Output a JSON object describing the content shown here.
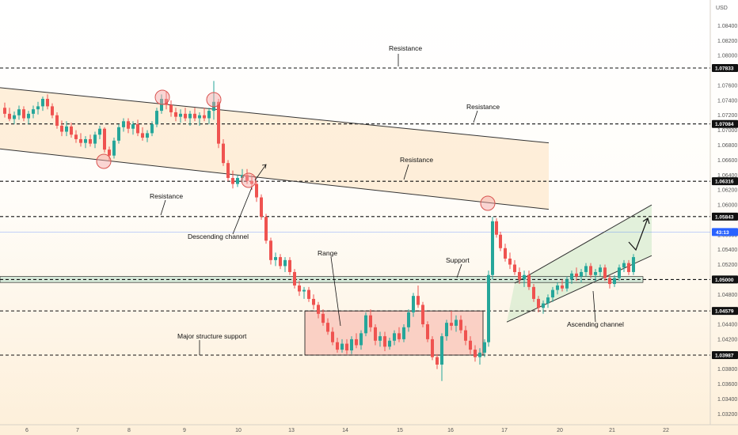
{
  "chart_data": {
    "type": "candlestick",
    "unit": "USD",
    "x_ticks": [
      "6",
      "7",
      "8",
      "9",
      "10",
      "13",
      "14",
      "15",
      "16",
      "17",
      "20",
      "21",
      "22"
    ],
    "y_ticks": [
      "1.08400",
      "1.08200",
      "1.08000",
      "1.07600",
      "1.07400",
      "1.07200",
      "1.07000",
      "1.06800",
      "1.06600",
      "1.06400",
      "1.06200",
      "1.06000",
      "1.05600",
      "1.05400",
      "1.05200",
      "1.04800",
      "1.04400",
      "1.04200",
      "1.04000",
      "1.03800",
      "1.03600",
      "1.03400",
      "1.03200"
    ],
    "levels": [
      {
        "value": "1.07833",
        "price": 1.07833
      },
      {
        "value": "1.07084",
        "price": 1.07084
      },
      {
        "value": "1.06316",
        "price": 1.06316
      },
      {
        "value": "1.05843",
        "price": 1.05843
      },
      {
        "value": "1.05000",
        "price": 1.05
      },
      {
        "value": "1.04579",
        "price": 1.04579
      },
      {
        "value": "1.03987",
        "price": 1.03987
      }
    ],
    "current_price": {
      "label": "43:13",
      "price": 1.05636
    },
    "annotations": [
      {
        "text": "Resistance"
      },
      {
        "text": "Resistance"
      },
      {
        "text": "Resistance"
      },
      {
        "text": "Resistance"
      },
      {
        "text": "Descending channel"
      },
      {
        "text": "Range"
      },
      {
        "text": "Support"
      },
      {
        "text": "Major structure support"
      },
      {
        "text": "Ascending channel"
      }
    ],
    "descending_channel": {
      "upper": [
        [
          0,
          1.0757
        ],
        [
          693,
          1.0683
        ]
      ],
      "lower": [
        [
          0,
          1.0675
        ],
        [
          693,
          1.0594
        ]
      ]
    },
    "ascending_channel": {
      "upper": [
        [
          650,
          1.0495
        ],
        [
          823,
          1.06
        ]
      ],
      "lower": [
        [
          640,
          1.0443
        ],
        [
          823,
          1.0532
        ]
      ]
    },
    "range_box": {
      "x_from": 385,
      "x_to": 610,
      "top": 1.04579,
      "bottom": 1.03987
    },
    "support_zone": {
      "top": 1.0504,
      "bottom": 1.0496
    },
    "candles": [
      [
        0,
        1.073,
        1.0737,
        1.0717,
        1.0722
      ],
      [
        6,
        1.0722,
        1.073,
        1.0712,
        1.0715
      ],
      [
        12,
        1.0715,
        1.0725,
        1.0708,
        1.072
      ],
      [
        18,
        1.072,
        1.0733,
        1.0714,
        1.0728
      ],
      [
        24,
        1.0728,
        1.0732,
        1.0712,
        1.0716
      ],
      [
        30,
        1.0716,
        1.0726,
        1.0708,
        1.0722
      ],
      [
        36,
        1.0722,
        1.0733,
        1.0716,
        1.0728
      ],
      [
        42,
        1.0728,
        1.0738,
        1.0721,
        1.0732
      ],
      [
        48,
        1.0732,
        1.0745,
        1.0726,
        1.0742
      ],
      [
        54,
        1.0742,
        1.0748,
        1.0728,
        1.0732
      ],
      [
        60,
        1.0732,
        1.0736,
        1.0716,
        1.072
      ],
      [
        66,
        1.072,
        1.0724,
        1.0702,
        1.0706
      ],
      [
        72,
        1.0706,
        1.0713,
        1.0692,
        1.0698
      ],
      [
        78,
        1.0698,
        1.0712,
        1.0692,
        1.0705
      ],
      [
        84,
        1.0705,
        1.071,
        1.069,
        1.0694
      ],
      [
        90,
        1.0694,
        1.07,
        1.0683,
        1.0688
      ],
      [
        96,
        1.0688,
        1.0696,
        1.0678,
        1.0683
      ],
      [
        102,
        1.0683,
        1.0692,
        1.0676,
        1.0688
      ],
      [
        108,
        1.0688,
        1.0694,
        1.0678,
        1.0682
      ],
      [
        114,
        1.0682,
        1.0698,
        1.0676,
        1.0694
      ],
      [
        120,
        1.0694,
        1.0706,
        1.0688,
        1.0702
      ],
      [
        126,
        1.0702,
        1.0704,
        1.067,
        1.0674
      ],
      [
        132,
        1.0674,
        1.0678,
        1.0658,
        1.0666
      ],
      [
        138,
        1.0666,
        1.069,
        1.0662,
        1.0686
      ],
      [
        144,
        1.0686,
        1.0708,
        1.0682,
        1.0704
      ],
      [
        150,
        1.0704,
        1.0716,
        1.0698,
        1.0712
      ],
      [
        156,
        1.0712,
        1.0716,
        1.0696,
        1.0702
      ],
      [
        162,
        1.0702,
        1.0712,
        1.0694,
        1.0708
      ],
      [
        168,
        1.0708,
        1.0714,
        1.0692,
        1.0696
      ],
      [
        174,
        1.0696,
        1.0704,
        1.0686,
        1.069
      ],
      [
        180,
        1.069,
        1.07,
        1.0684,
        1.0696
      ],
      [
        186,
        1.0696,
        1.0712,
        1.0692,
        1.0708
      ],
      [
        192,
        1.0708,
        1.073,
        1.0704,
        1.0726
      ],
      [
        198,
        1.0726,
        1.0748,
        1.0722,
        1.0742
      ],
      [
        204,
        1.0742,
        1.0752,
        1.0728,
        1.0734
      ],
      [
        210,
        1.0734,
        1.074,
        1.0718,
        1.0724
      ],
      [
        216,
        1.0724,
        1.073,
        1.0712,
        1.0718
      ],
      [
        222,
        1.0718,
        1.0728,
        1.071,
        1.0722
      ],
      [
        228,
        1.0722,
        1.073,
        1.0712,
        1.0716
      ],
      [
        234,
        1.0716,
        1.0726,
        1.0706,
        1.0722
      ],
      [
        240,
        1.0722,
        1.073,
        1.0712,
        1.0716
      ],
      [
        246,
        1.0716,
        1.0724,
        1.0706,
        1.072
      ],
      [
        252,
        1.072,
        1.073,
        1.0712,
        1.0716
      ],
      [
        258,
        1.0716,
        1.073,
        1.0708,
        1.0726
      ],
      [
        264,
        1.0726,
        1.0766,
        1.0714,
        1.0738
      ],
      [
        270,
        1.0738,
        1.0742,
        1.0676,
        1.0682
      ],
      [
        276,
        1.0682,
        1.0688,
        1.0652,
        1.0656
      ],
      [
        282,
        1.0656,
        1.066,
        1.0632,
        1.0636
      ],
      [
        288,
        1.0636,
        1.0646,
        1.0622,
        1.0628
      ],
      [
        294,
        1.0628,
        1.064,
        1.0624,
        1.0636
      ],
      [
        300,
        1.0636,
        1.0648,
        1.063,
        1.064
      ],
      [
        306,
        1.064,
        1.0648,
        1.0628,
        1.0632
      ],
      [
        312,
        1.0632,
        1.064,
        1.062,
        1.0628
      ],
      [
        318,
        1.0628,
        1.0632,
        1.0604,
        1.061
      ],
      [
        324,
        1.061,
        1.0614,
        1.058,
        1.0584
      ],
      [
        330,
        1.0584,
        1.0588,
        1.0548,
        1.0552
      ],
      [
        336,
        1.0552,
        1.0556,
        1.052,
        1.0526
      ],
      [
        342,
        1.0526,
        1.0536,
        1.0518,
        1.053
      ],
      [
        348,
        1.053,
        1.0534,
        1.0514,
        1.0518
      ],
      [
        354,
        1.0518,
        1.053,
        1.051,
        1.0526
      ],
      [
        360,
        1.0526,
        1.053,
        1.0506,
        1.051
      ],
      [
        366,
        1.051,
        1.0514,
        1.0488,
        1.0492
      ],
      [
        372,
        1.0492,
        1.0498,
        1.0478,
        1.0484
      ],
      [
        378,
        1.0484,
        1.049,
        1.0474,
        1.0486
      ],
      [
        384,
        1.0486,
        1.049,
        1.047,
        1.0474
      ],
      [
        390,
        1.0474,
        1.048,
        1.046,
        1.0466
      ],
      [
        396,
        1.0466,
        1.047,
        1.0448,
        1.0454
      ],
      [
        402,
        1.0454,
        1.046,
        1.0438,
        1.0442
      ],
      [
        408,
        1.0442,
        1.0448,
        1.0426,
        1.043
      ],
      [
        414,
        1.043,
        1.0436,
        1.0412,
        1.0416
      ],
      [
        420,
        1.0416,
        1.0422,
        1.0402,
        1.0406
      ],
      [
        426,
        1.0406,
        1.042,
        1.0402,
        1.0414
      ],
      [
        432,
        1.0414,
        1.042,
        1.04,
        1.0405
      ],
      [
        438,
        1.0405,
        1.0424,
        1.04,
        1.042
      ],
      [
        444,
        1.042,
        1.0428,
        1.0408,
        1.0412
      ],
      [
        450,
        1.0412,
        1.0432,
        1.0406,
        1.0428
      ],
      [
        456,
        1.0428,
        1.0456,
        1.0424,
        1.0452
      ],
      [
        462,
        1.0452,
        1.046,
        1.043,
        1.0436
      ],
      [
        468,
        1.0436,
        1.044,
        1.0412,
        1.0418
      ],
      [
        474,
        1.0418,
        1.043,
        1.041,
        1.0424
      ],
      [
        480,
        1.0424,
        1.043,
        1.0404,
        1.041
      ],
      [
        486,
        1.041,
        1.0422,
        1.0406,
        1.0418
      ],
      [
        492,
        1.0418,
        1.0432,
        1.0412,
        1.0428
      ],
      [
        498,
        1.0428,
        1.0436,
        1.0416,
        1.042
      ],
      [
        504,
        1.042,
        1.044,
        1.0416,
        1.0436
      ],
      [
        510,
        1.0436,
        1.046,
        1.043,
        1.0456
      ],
      [
        516,
        1.0456,
        1.0482,
        1.045,
        1.0478
      ],
      [
        522,
        1.0478,
        1.0492,
        1.0462,
        1.0466
      ],
      [
        528,
        1.0466,
        1.047,
        1.0436,
        1.044
      ],
      [
        534,
        1.044,
        1.0444,
        1.0416,
        1.042
      ],
      [
        540,
        1.042,
        1.0424,
        1.0392,
        1.0396
      ],
      [
        546,
        1.0396,
        1.04,
        1.038,
        1.0386
      ],
      [
        552,
        1.0386,
        1.0428,
        1.0364,
        1.0424
      ],
      [
        558,
        1.0424,
        1.0446,
        1.0418,
        1.0442
      ],
      [
        564,
        1.0442,
        1.0458,
        1.0432,
        1.0438
      ],
      [
        570,
        1.0438,
        1.0452,
        1.043,
        1.0446
      ],
      [
        576,
        1.0446,
        1.0452,
        1.0428,
        1.0432
      ],
      [
        582,
        1.0432,
        1.0438,
        1.0412,
        1.0418
      ],
      [
        588,
        1.0418,
        1.0424,
        1.04,
        1.0406
      ],
      [
        594,
        1.0406,
        1.0412,
        1.039,
        1.0396
      ],
      [
        600,
        1.0396,
        1.0408,
        1.0386,
        1.0402
      ],
      [
        606,
        1.0402,
        1.042,
        1.0396,
        1.0416
      ],
      [
        611,
        1.0416,
        1.0512,
        1.041,
        1.0506
      ],
      [
        616,
        1.0506,
        1.0584,
        1.05,
        1.0578
      ],
      [
        621,
        1.0578,
        1.0582,
        1.0556,
        1.056
      ],
      [
        626,
        1.056,
        1.0564,
        1.0538,
        1.0542
      ],
      [
        632,
        1.0542,
        1.0548,
        1.0524,
        1.0528
      ],
      [
        638,
        1.0528,
        1.0536,
        1.0514,
        1.052
      ],
      [
        644,
        1.052,
        1.0526,
        1.0506,
        1.051
      ],
      [
        650,
        1.051,
        1.0516,
        1.0494,
        1.05
      ],
      [
        656,
        1.05,
        1.0512,
        1.049,
        1.0506
      ],
      [
        662,
        1.0506,
        1.0512,
        1.0486,
        1.049
      ],
      [
        668,
        1.049,
        1.0494,
        1.047,
        1.0474
      ],
      [
        674,
        1.0474,
        1.0478,
        1.0456,
        1.0462
      ],
      [
        680,
        1.0462,
        1.0472,
        1.0454,
        1.0468
      ],
      [
        686,
        1.0468,
        1.048,
        1.0462,
        1.0476
      ],
      [
        692,
        1.0476,
        1.049,
        1.047,
        1.0486
      ],
      [
        698,
        1.0486,
        1.0496,
        1.048,
        1.0492
      ],
      [
        704,
        1.0492,
        1.05,
        1.0484,
        1.0488
      ],
      [
        710,
        1.0488,
        1.0504,
        1.0484,
        1.05
      ],
      [
        716,
        1.05,
        1.0512,
        1.0494,
        1.0508
      ],
      [
        722,
        1.0508,
        1.0516,
        1.0498,
        1.0504
      ],
      [
        728,
        1.0504,
        1.0514,
        1.0496,
        1.051
      ],
      [
        734,
        1.051,
        1.0522,
        1.0504,
        1.0518
      ],
      [
        740,
        1.0518,
        1.0522,
        1.0502,
        1.0506
      ],
      [
        746,
        1.0506,
        1.0514,
        1.0498,
        1.051
      ],
      [
        752,
        1.051,
        1.052,
        1.0504,
        1.0516
      ],
      [
        758,
        1.0516,
        1.052,
        1.0498,
        1.0502
      ],
      [
        764,
        1.0502,
        1.0506,
        1.0488,
        1.0494
      ],
      [
        770,
        1.0494,
        1.0506,
        1.049,
        1.0502
      ],
      [
        776,
        1.0502,
        1.052,
        1.0498,
        1.0516
      ],
      [
        782,
        1.0516,
        1.0526,
        1.051,
        1.0522
      ],
      [
        788,
        1.0522,
        1.0526,
        1.0506,
        1.051
      ],
      [
        794,
        1.051,
        1.0534,
        1.0506,
        1.053
      ]
    ]
  }
}
